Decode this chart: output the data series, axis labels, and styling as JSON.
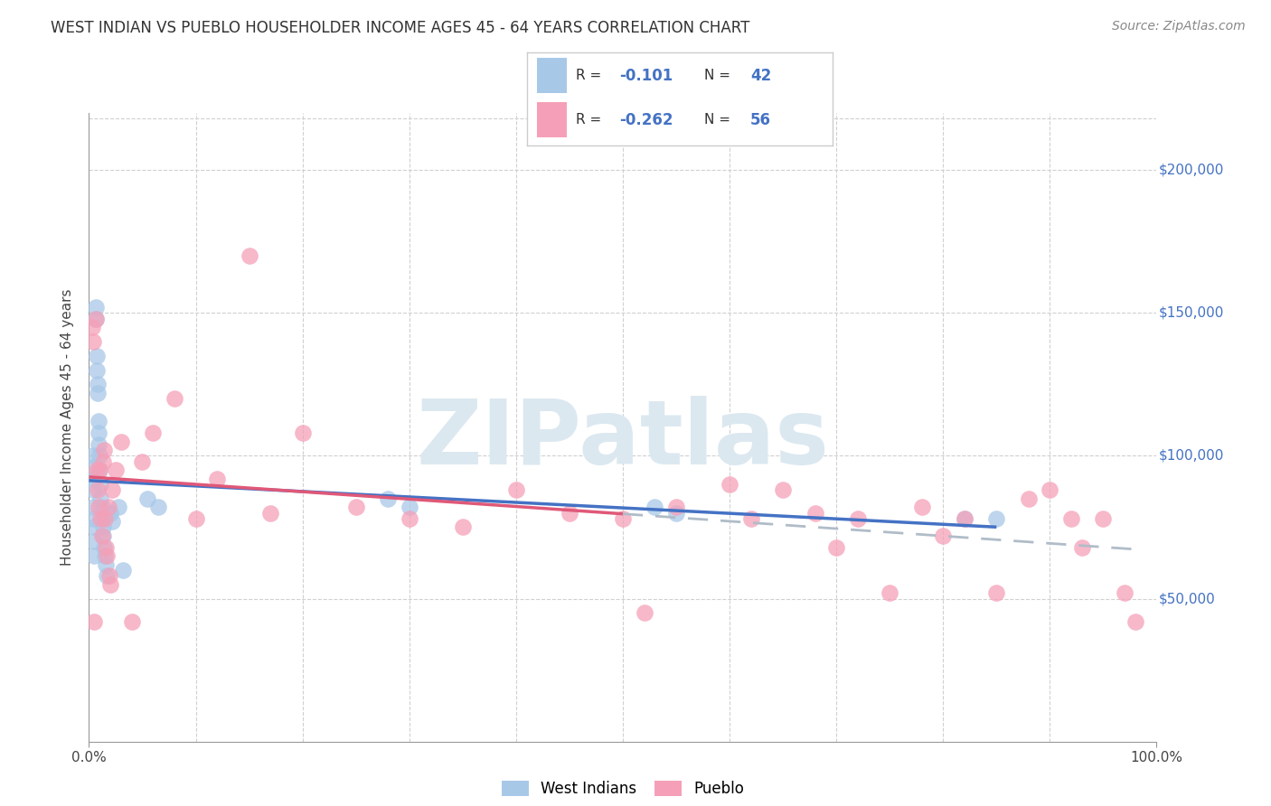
{
  "title": "WEST INDIAN VS PUEBLO HOUSEHOLDER INCOME AGES 45 - 64 YEARS CORRELATION CHART",
  "source": "Source: ZipAtlas.com",
  "ylabel": "Householder Income Ages 45 - 64 years",
  "west_indian_R": -0.101,
  "west_indian_N": 42,
  "pueblo_R": -0.262,
  "pueblo_N": 56,
  "west_indian_color": "#a8c8e8",
  "pueblo_color": "#f5a0b8",
  "west_indian_line_color": "#4472c4",
  "pueblo_line_color": "#e05878",
  "trend_ext_color": "#b0bcc8",
  "watermark_text": "ZIPatlas",
  "watermark_color": "#dce8f0",
  "xlim": [
    0,
    1.0
  ],
  "ylim": [
    0,
    220000
  ],
  "wi_x": [
    0.004,
    0.004,
    0.004,
    0.004,
    0.004,
    0.004,
    0.005,
    0.005,
    0.005,
    0.006,
    0.006,
    0.007,
    0.007,
    0.008,
    0.008,
    0.009,
    0.009,
    0.009,
    0.01,
    0.01,
    0.011,
    0.011,
    0.012,
    0.012,
    0.013,
    0.013,
    0.014,
    0.015,
    0.016,
    0.017,
    0.02,
    0.022,
    0.028,
    0.032,
    0.055,
    0.065,
    0.28,
    0.3,
    0.53,
    0.55,
    0.82,
    0.85
  ],
  "wi_y": [
    100000,
    96000,
    92000,
    88000,
    82000,
    78000,
    75000,
    70000,
    65000,
    152000,
    148000,
    135000,
    130000,
    125000,
    122000,
    112000,
    108000,
    104000,
    100000,
    95000,
    90000,
    85000,
    82000,
    78000,
    75000,
    72000,
    68000,
    65000,
    62000,
    58000,
    80000,
    77000,
    82000,
    60000,
    85000,
    82000,
    85000,
    82000,
    82000,
    80000,
    78000,
    78000
  ],
  "pb_x": [
    0.003,
    0.004,
    0.005,
    0.006,
    0.007,
    0.008,
    0.009,
    0.01,
    0.011,
    0.012,
    0.013,
    0.014,
    0.015,
    0.016,
    0.017,
    0.018,
    0.019,
    0.02,
    0.022,
    0.025,
    0.03,
    0.04,
    0.05,
    0.06,
    0.08,
    0.1,
    0.12,
    0.15,
    0.17,
    0.2,
    0.25,
    0.3,
    0.35,
    0.4,
    0.45,
    0.5,
    0.52,
    0.55,
    0.6,
    0.62,
    0.65,
    0.68,
    0.7,
    0.72,
    0.75,
    0.78,
    0.8,
    0.82,
    0.85,
    0.88,
    0.9,
    0.92,
    0.93,
    0.95,
    0.97,
    0.98
  ],
  "pb_y": [
    145000,
    140000,
    42000,
    148000,
    95000,
    88000,
    82000,
    95000,
    78000,
    72000,
    98000,
    102000,
    78000,
    68000,
    65000,
    82000,
    58000,
    55000,
    88000,
    95000,
    105000,
    42000,
    98000,
    108000,
    120000,
    78000,
    92000,
    170000,
    80000,
    108000,
    82000,
    78000,
    75000,
    88000,
    80000,
    78000,
    45000,
    82000,
    90000,
    78000,
    88000,
    80000,
    68000,
    78000,
    52000,
    82000,
    72000,
    78000,
    52000,
    85000,
    88000,
    78000,
    68000,
    78000,
    52000,
    42000
  ]
}
